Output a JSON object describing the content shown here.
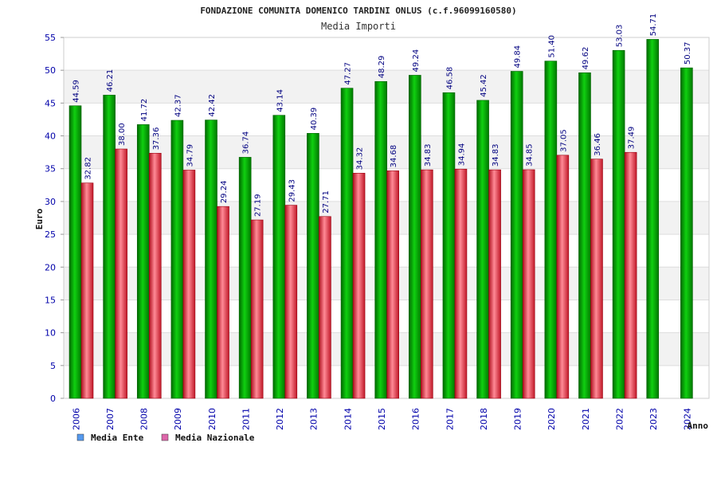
{
  "chart_data": {
    "type": "bar",
    "title": "FONDAZIONE COMUNITA DOMENICO TARDINI ONLUS (c.f.96099160580)",
    "subtitle": "Media Importi",
    "ylabel": "Euro",
    "xlabel": "Anno",
    "ylim": [
      0,
      55
    ],
    "yticks": [
      "0",
      "5",
      "10",
      "15",
      "20",
      "25",
      "30",
      "35",
      "40",
      "45",
      "50",
      "55"
    ],
    "categories": [
      "2006",
      "2007",
      "2008",
      "2009",
      "2010",
      "2011",
      "2012",
      "2013",
      "2014",
      "2015",
      "2016",
      "2017",
      "2018",
      "2019",
      "2020",
      "2021",
      "2022",
      "2023",
      "2024"
    ],
    "series": [
      {
        "name": "Media Ente",
        "color": "#00b000",
        "values": [
          44.59,
          46.21,
          41.72,
          42.37,
          42.42,
          36.74,
          43.14,
          40.39,
          47.27,
          48.29,
          49.24,
          46.58,
          45.42,
          49.84,
          51.4,
          49.62,
          53.03,
          54.71,
          50.37
        ],
        "labels": [
          "44.59",
          "46.21",
          "41.72",
          "42.37",
          "42.42",
          "36.74",
          "43.14",
          "40.39",
          "47.27",
          "48.29",
          "49.24",
          "46.58",
          "45.42",
          "49.84",
          "51.40",
          "49.62",
          "53.03",
          "54.71",
          "50.37"
        ]
      },
      {
        "name": "Media Nazionale",
        "color": "#e8283c",
        "values": [
          32.82,
          38.0,
          37.36,
          34.79,
          29.24,
          27.19,
          29.43,
          27.71,
          34.32,
          34.68,
          34.83,
          34.94,
          34.83,
          34.85,
          37.05,
          36.46,
          37.49,
          null,
          null
        ],
        "labels": [
          "32.82",
          "38.00",
          "37.36",
          "34.79",
          "29.24",
          "27.19",
          "29.43",
          "27.71",
          "34.32",
          "34.68",
          "34.83",
          "34.94",
          "34.83",
          "34.85",
          "37.05",
          "36.46",
          "37.49",
          "",
          ""
        ]
      }
    ],
    "legend": [
      {
        "label": "Media Ente",
        "swatch": "#5599ee"
      },
      {
        "label": "Media Nazionale",
        "swatch": "#dd66aa"
      }
    ],
    "grid": true,
    "legend_position": "bottom-left"
  }
}
